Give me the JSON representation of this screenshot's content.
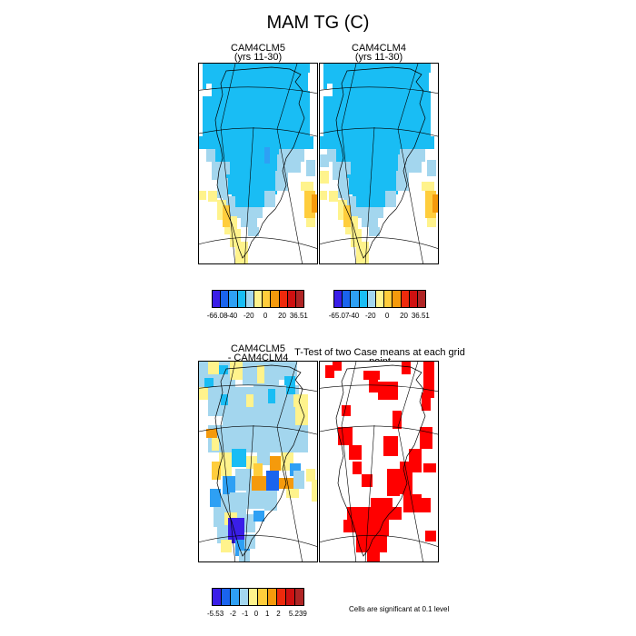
{
  "title": "MAM TG (C)",
  "panels": [
    {
      "id": "clm5",
      "title_line1": "CAM4CLM5",
      "title_line2": "(yrs 11-30)"
    },
    {
      "id": "clm4",
      "title_line1": "CAM4CLM4",
      "title_line2": "(yrs 11-30)"
    },
    {
      "id": "diff",
      "title_line1": "CAM4CLM5",
      "title_line2": "- CAM4CLM4"
    },
    {
      "id": "ttest",
      "title_line1": "T-Test of two Case means at each grid point",
      "title_line2": ""
    }
  ],
  "colorbars": {
    "clm5": {
      "labels": [
        "-66.08",
        "-40",
        "-20",
        "0",
        "20",
        "36.51"
      ]
    },
    "clm4": {
      "labels": [
        "-65.07",
        "-40",
        "-20",
        "0",
        "20",
        "36.51"
      ]
    },
    "diff": {
      "labels": [
        "-5.53",
        "-2",
        "-1",
        "0",
        "1",
        "2",
        "5.239"
      ]
    }
  },
  "colors": {
    "abs_bins": [
      "#3a1ee8",
      "#1a64ee",
      "#2ea0f4",
      "#19bdf4",
      "#a3d6ee",
      "#fff38c",
      "#ffcd3c",
      "#f59a0c",
      "#ee2a0c",
      "#cf1111",
      "#b02525"
    ],
    "diff_bins": [
      "#3a1ee8",
      "#1a64ee",
      "#2ea0f4",
      "#a3d6ee",
      "#fff38c",
      "#ffcd3c",
      "#f59a0c",
      "#ee2a0c",
      "#cf1111",
      "#b02525"
    ],
    "significant": "#ff0000"
  },
  "note": "Cells are significant at 0.1 level"
}
